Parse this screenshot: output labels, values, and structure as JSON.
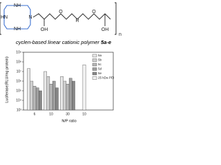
{
  "structure": {
    "atoms": [
      "N",
      "NH",
      "HN",
      "NH",
      "OH",
      "O",
      "R",
      "O",
      "OH"
    ],
    "repeat": "n"
  },
  "caption": {
    "text": "cyclen-based linear cationic polymer",
    "compound": "5a-e"
  },
  "chart_data": {
    "type": "bar",
    "log_scale": true,
    "ylabel": "Luciferase(RLU/mg protein)",
    "xlabel": "N/P ratio",
    "categories": [
      "6",
      "10",
      "30",
      "10"
    ],
    "series": [
      {
        "name": "5a",
        "color": "#e8e8e8",
        "values": [
          20000000,
          10000000,
          3000000,
          null
        ]
      },
      {
        "name": "5b",
        "color": "#d0d0d0",
        "values": [
          1000000,
          3000000,
          1000000,
          null
        ]
      },
      {
        "name": "5c",
        "color": "#b8b8b8",
        "values": [
          300000,
          500000,
          500000,
          null
        ]
      },
      {
        "name": "5d",
        "color": "#a0a0a0",
        "values": [
          200000,
          1000000,
          2000000,
          null
        ]
      },
      {
        "name": "5e",
        "color": "#888888",
        "values": [
          100000,
          200000,
          1000000,
          null
        ]
      },
      {
        "name": "25 kDa PEI",
        "color": "#f4f4f4",
        "values": [
          null,
          null,
          null,
          50000000
        ]
      }
    ],
    "ylim": [
      1000,
      1000000000
    ],
    "yticks": [
      {
        "value": 1000,
        "label": "10³"
      },
      {
        "value": 10000,
        "label": "10⁴"
      },
      {
        "value": 100000,
        "label": "10⁵"
      },
      {
        "value": 1000000,
        "label": "10⁶"
      },
      {
        "value": 10000000,
        "label": "10⁷"
      },
      {
        "value": 100000000,
        "label": "10⁸"
      },
      {
        "value": 1000000000,
        "label": "10⁹"
      }
    ],
    "legend": "top-right"
  }
}
